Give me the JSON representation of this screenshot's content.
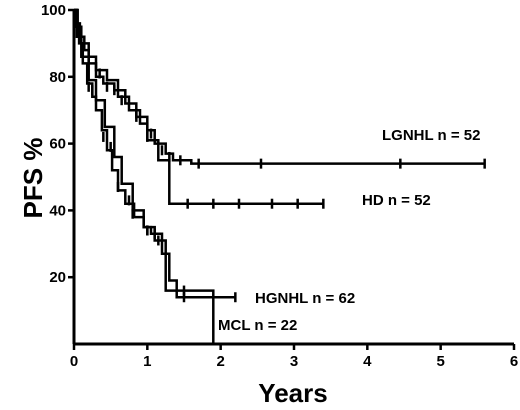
{
  "chart_data": {
    "type": "line",
    "subtype": "kaplan-meier step curves",
    "xlabel": "Years",
    "ylabel": "PFS %",
    "xlim": [
      0,
      6
    ],
    "ylim": [
      0,
      100
    ],
    "x_ticks": [
      "0",
      "1",
      "2",
      "3",
      "4",
      "5",
      "6"
    ],
    "y_ticks": [
      "20",
      "40",
      "60",
      "80",
      "100"
    ],
    "grid": false,
    "legend": "inline labels at curve ends",
    "series": [
      {
        "name": "LGNHL",
        "n_label": "n = 52",
        "label_text": "LGNHL  n = 52",
        "steps": [
          [
            0,
            100
          ],
          [
            0.04,
            96
          ],
          [
            0.08,
            92
          ],
          [
            0.14,
            88
          ],
          [
            0.2,
            84
          ],
          [
            0.3,
            80
          ],
          [
            0.4,
            78
          ],
          [
            0.55,
            76
          ],
          [
            0.7,
            72
          ],
          [
            0.85,
            68
          ],
          [
            1.0,
            64
          ],
          [
            1.1,
            60
          ],
          [
            1.25,
            57
          ],
          [
            1.35,
            55
          ],
          [
            1.6,
            54
          ],
          [
            5.6,
            54
          ]
        ],
        "censored": [
          [
            0.45,
            77
          ],
          [
            0.65,
            73
          ],
          [
            0.85,
            69
          ],
          [
            1.05,
            63
          ],
          [
            1.2,
            58
          ],
          [
            1.3,
            56
          ],
          [
            1.45,
            55
          ],
          [
            1.7,
            54
          ],
          [
            2.55,
            54
          ],
          [
            4.45,
            54
          ],
          [
            5.6,
            54
          ]
        ]
      },
      {
        "name": "HD",
        "n_label": "n = 52",
        "label_text": "HD  n = 52",
        "steps": [
          [
            0,
            100
          ],
          [
            0.05,
            95
          ],
          [
            0.1,
            90
          ],
          [
            0.2,
            86
          ],
          [
            0.3,
            82
          ],
          [
            0.45,
            79
          ],
          [
            0.6,
            74
          ],
          [
            0.75,
            70
          ],
          [
            0.9,
            66
          ],
          [
            1.0,
            61
          ],
          [
            1.15,
            55
          ],
          [
            1.3,
            42
          ],
          [
            3.4,
            42
          ]
        ],
        "censored": [
          [
            0.35,
            81
          ],
          [
            0.55,
            76
          ],
          [
            0.85,
            68
          ],
          [
            1.0,
            62
          ],
          [
            1.55,
            42
          ],
          [
            1.9,
            42
          ],
          [
            2.25,
            42
          ],
          [
            2.7,
            42
          ],
          [
            3.05,
            42
          ],
          [
            3.4,
            42
          ]
        ]
      },
      {
        "name": "HGNHL",
        "n_label": "n = 62",
        "label_text": "HGNHL  n = 62",
        "steps": [
          [
            0,
            100
          ],
          [
            0.03,
            95
          ],
          [
            0.07,
            90
          ],
          [
            0.12,
            84
          ],
          [
            0.18,
            78
          ],
          [
            0.25,
            74
          ],
          [
            0.3,
            70
          ],
          [
            0.38,
            64
          ],
          [
            0.45,
            58
          ],
          [
            0.52,
            52
          ],
          [
            0.6,
            46
          ],
          [
            0.7,
            42
          ],
          [
            0.82,
            38
          ],
          [
            0.95,
            35
          ],
          [
            1.05,
            33
          ],
          [
            1.2,
            27
          ],
          [
            1.3,
            19
          ],
          [
            1.4,
            14
          ],
          [
            2.2,
            14
          ]
        ],
        "censored": [
          [
            0.2,
            77
          ],
          [
            0.4,
            62
          ],
          [
            0.6,
            47
          ],
          [
            0.8,
            39
          ],
          [
            1.0,
            34
          ],
          [
            1.1,
            33
          ],
          [
            1.5,
            14
          ],
          [
            2.2,
            14
          ]
        ]
      },
      {
        "name": "MCL",
        "n_label": "n = 22",
        "label_text": "MCL  n = 22",
        "steps": [
          [
            0,
            100
          ],
          [
            0.04,
            92
          ],
          [
            0.1,
            86
          ],
          [
            0.2,
            79
          ],
          [
            0.3,
            73
          ],
          [
            0.42,
            65
          ],
          [
            0.55,
            56
          ],
          [
            0.65,
            48
          ],
          [
            0.8,
            40
          ],
          [
            0.95,
            35
          ],
          [
            1.1,
            31
          ],
          [
            1.25,
            16
          ],
          [
            1.9,
            16
          ],
          [
            1.9,
            0
          ]
        ],
        "censored": [
          [
            0.25,
            76
          ],
          [
            0.5,
            59
          ],
          [
            0.75,
            43
          ],
          [
            1.0,
            34
          ],
          [
            1.15,
            31
          ],
          [
            1.5,
            16
          ]
        ]
      }
    ]
  }
}
